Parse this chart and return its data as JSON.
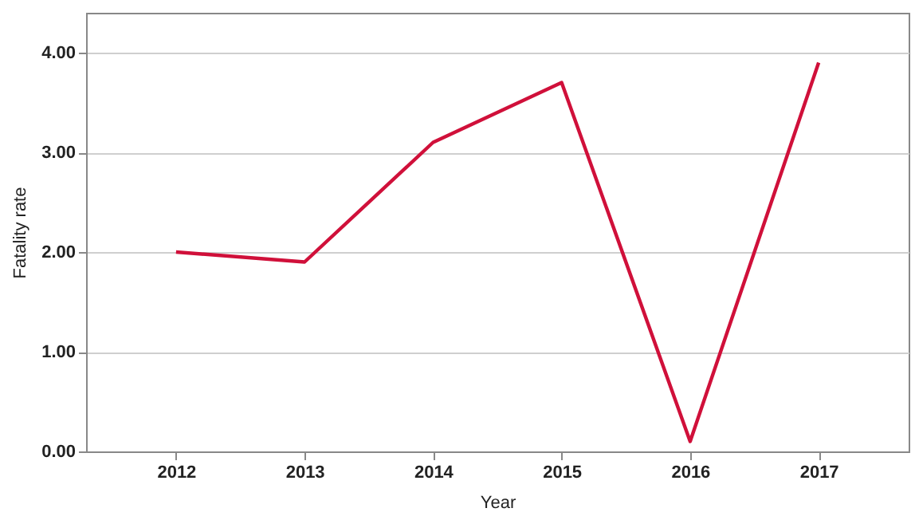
{
  "chart_data": {
    "type": "line",
    "xlabel": "Year",
    "ylabel": "Fatality rate",
    "categories": [
      "2012",
      "2013",
      "2014",
      "2015",
      "2016",
      "2017"
    ],
    "series": [
      {
        "color": "#d0103a",
        "values": [
          2.0,
          1.9,
          3.1,
          3.7,
          0.1,
          3.9
        ]
      }
    ],
    "ylim": [
      0,
      4.4
    ],
    "yticks": [
      {
        "value": 0,
        "label": "0.00"
      },
      {
        "value": 1,
        "label": "1.00"
      },
      {
        "value": 2,
        "label": "2.00"
      },
      {
        "value": 3,
        "label": "3.00"
      },
      {
        "value": 4,
        "label": "4.00"
      }
    ],
    "grid": "y",
    "marker": "none",
    "line_style": "solid"
  }
}
